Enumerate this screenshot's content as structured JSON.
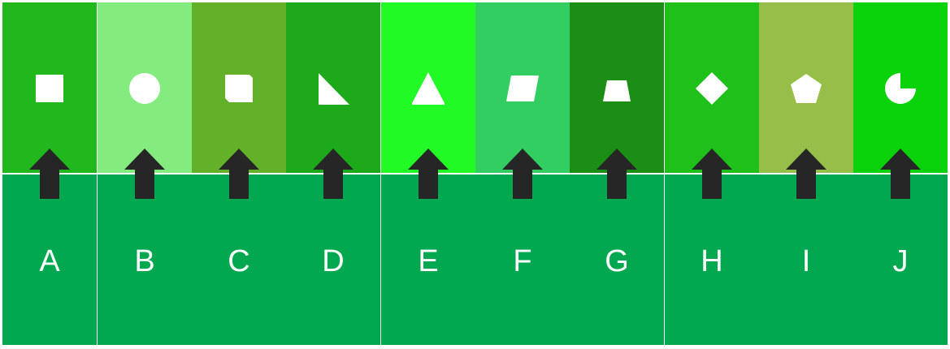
{
  "columns": [
    {
      "letter": "A",
      "color": "#20b81d",
      "shape": "square-icon"
    },
    {
      "letter": "B",
      "color": "#84eb7e",
      "shape": "circle-icon"
    },
    {
      "letter": "C",
      "color": "#62b129",
      "shape": "cut-corner-square-icon"
    },
    {
      "letter": "D",
      "color": "#1ca91a",
      "shape": "right-triangle-icon"
    },
    {
      "letter": "E",
      "color": "#21fa25",
      "shape": "triangle-icon"
    },
    {
      "letter": "F",
      "color": "#32ce62",
      "shape": "parallelogram-icon"
    },
    {
      "letter": "G",
      "color": "#1b8e16",
      "shape": "trapezoid-icon"
    },
    {
      "letter": "H",
      "color": "#1fc01a",
      "shape": "diamond-icon"
    },
    {
      "letter": "I",
      "color": "#98be4a",
      "shape": "pentagon-icon"
    },
    {
      "letter": "J",
      "color": "#0bd30b",
      "shape": "pie-icon"
    }
  ],
  "bottom_color": "#01a84f",
  "arrow_color": "#262626",
  "shape_color": "#ffffff"
}
